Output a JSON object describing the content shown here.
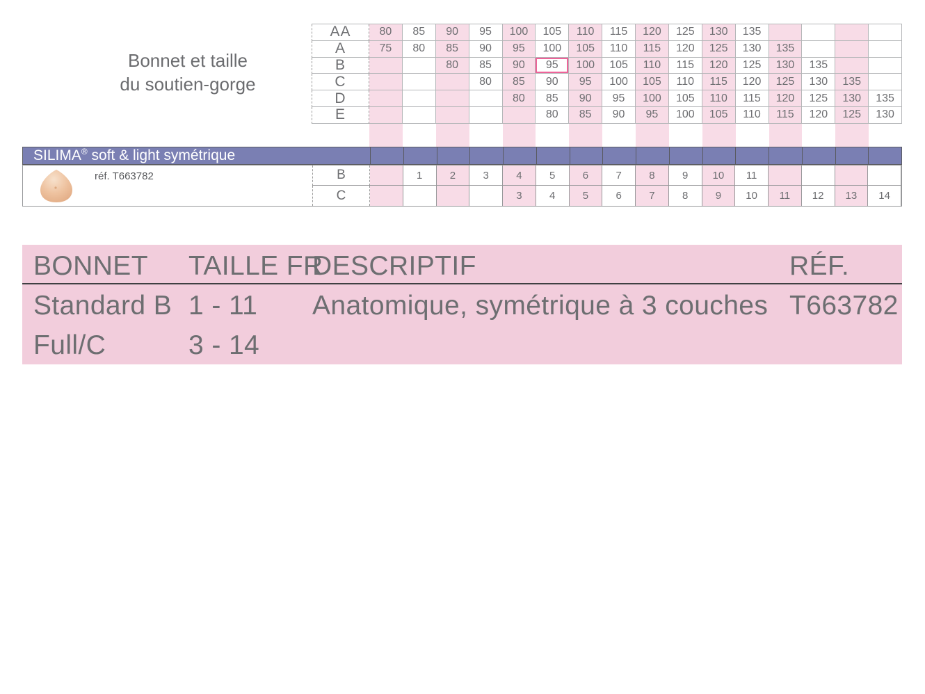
{
  "size_chart": {
    "title_lines": [
      "Bonnet et taille",
      "du soutien-gorge"
    ],
    "row_labels": [
      "AA",
      "A",
      "B",
      "C",
      "D",
      "E"
    ],
    "rows": [
      [
        "80",
        "85",
        "90",
        "95",
        "100",
        "105",
        "110",
        "115",
        "120",
        "125",
        "130",
        "135",
        "",
        "",
        "",
        ""
      ],
      [
        "75",
        "80",
        "85",
        "90",
        "95",
        "100",
        "105",
        "110",
        "115",
        "120",
        "125",
        "130",
        "135",
        "",
        "",
        ""
      ],
      [
        "",
        "",
        "80",
        "85",
        "90",
        "95",
        "100",
        "105",
        "110",
        "115",
        "120",
        "125",
        "130",
        "135",
        "",
        ""
      ],
      [
        "",
        "",
        "",
        "80",
        "85",
        "90",
        "95",
        "100",
        "105",
        "110",
        "115",
        "120",
        "125",
        "130",
        "135",
        ""
      ],
      [
        "",
        "",
        "",
        "",
        "80",
        "85",
        "90",
        "95",
        "100",
        "105",
        "110",
        "115",
        "120",
        "125",
        "130",
        "135"
      ],
      [
        "",
        "",
        "",
        "",
        "",
        "80",
        "85",
        "90",
        "95",
        "100",
        "105",
        "110",
        "115",
        "120",
        "125",
        "130"
      ]
    ],
    "highlight": {
      "row_index": 2,
      "col_index": 5,
      "value": "95"
    }
  },
  "brand_bar": {
    "brand": "SILIMA",
    "registered": "®",
    "suffix": " soft & light symétrique"
  },
  "product": {
    "icon": "breast-prosthesis-icon",
    "ref_label": "réf. T663782",
    "size_rows": [
      {
        "label": "B",
        "values": [
          "",
          "1",
          "2",
          "3",
          "4",
          "5",
          "6",
          "7",
          "8",
          "9",
          "10",
          "11",
          "",
          "",
          "",
          ""
        ]
      },
      {
        "label": "C",
        "values": [
          "",
          "",
          "",
          "",
          "3",
          "4",
          "5",
          "6",
          "7",
          "8",
          "9",
          "10",
          "11",
          "12",
          "13",
          "14"
        ]
      }
    ]
  },
  "details_table": {
    "headers": [
      "BONNET",
      "TAILLE FR",
      "DESCRIPTIF",
      "RÉF."
    ],
    "rows": [
      {
        "bonnet": "Standard B",
        "taille_fr": "1 - 11",
        "descriptif": "Anatomique, symétrique à 3 couches",
        "ref": "T663782"
      },
      {
        "bonnet": "Full/C",
        "taille_fr": "3 - 14",
        "descriptif": "",
        "ref": ""
      }
    ]
  },
  "colors": {
    "stripe_pink": "#f8dce7",
    "table_pink": "#f2cddc",
    "brand_purple": "#7a7fb3",
    "highlight_pink": "#ee6399",
    "text_gray": "#6d6e71"
  }
}
